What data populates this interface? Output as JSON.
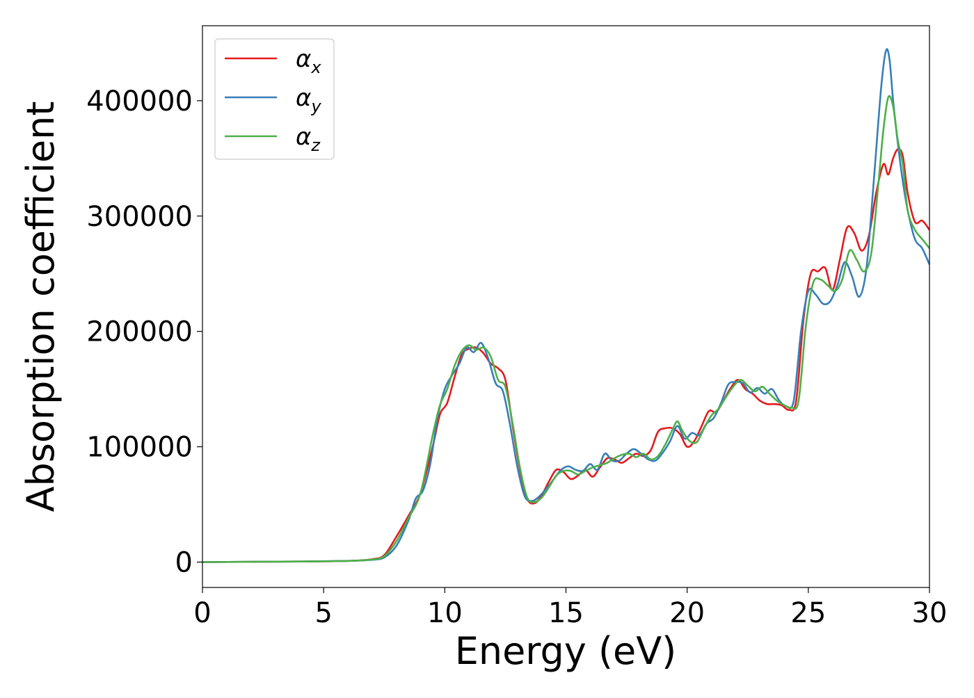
{
  "chart_data": {
    "type": "line",
    "title": "",
    "xlabel": "Energy (eV)",
    "ylabel": "Absorption coefficient",
    "xlim": [
      0,
      30
    ],
    "ylim": [
      -22000,
      465000
    ],
    "xticks": [
      "0",
      "5",
      "10",
      "15",
      "20",
      "25",
      "30"
    ],
    "yticks": [
      "0",
      "100000",
      "200000",
      "300000",
      "400000"
    ],
    "xtick_values": [
      0,
      5,
      10,
      15,
      20,
      25,
      30
    ],
    "ytick_values": [
      0,
      100000,
      200000,
      300000,
      400000
    ],
    "grid": false,
    "legend_position": "top-left",
    "series": [
      {
        "name": "αx",
        "symbol": "α",
        "subscript": "x",
        "color": "#e41a1c",
        "x": [
          0,
          4,
          6,
          7,
          7.5,
          8,
          8.5,
          9,
          9.5,
          9.8,
          10.1,
          10.4,
          10.7,
          11.0,
          11.3,
          11.6,
          11.9,
          12.2,
          12.5,
          12.8,
          13.1,
          13.4,
          13.7,
          14.0,
          14.3,
          14.6,
          14.9,
          15.2,
          15.5,
          15.8,
          16.1,
          16.4,
          16.7,
          17.0,
          17.3,
          17.6,
          17.9,
          18.2,
          18.5,
          18.8,
          19.1,
          19.4,
          19.7,
          20.0,
          20.3,
          20.6,
          20.9,
          21.2,
          21.5,
          21.8,
          22.1,
          22.4,
          22.7,
          23.0,
          23.3,
          23.6,
          23.9,
          24.2,
          24.5,
          24.8,
          25.1,
          25.4,
          25.7,
          26.0,
          26.3,
          26.6,
          26.9,
          27.2,
          27.5,
          27.8,
          28.1,
          28.3,
          28.5,
          28.7,
          28.9,
          29.1,
          29.4,
          29.7,
          30.0
        ],
        "values": [
          0,
          500,
          1000,
          2500,
          6000,
          22000,
          40000,
          60000,
          100000,
          128000,
          138000,
          160000,
          180000,
          185000,
          186000,
          181000,
          172000,
          168000,
          158000,
          118000,
          80000,
          55000,
          51000,
          58000,
          70000,
          80000,
          78000,
          72000,
          75000,
          80000,
          74000,
          82000,
          90000,
          89000,
          86000,
          90000,
          94000,
          92000,
          97000,
          113000,
          116000,
          116000,
          111000,
          100000,
          105000,
          118000,
          131000,
          130000,
          140000,
          151000,
          158000,
          150000,
          146000,
          140000,
          137000,
          137000,
          136000,
          132000,
          140000,
          210000,
          250000,
          252000,
          255000,
          236000,
          262000,
          290000,
          285000,
          270000,
          283000,
          320000,
          345000,
          336000,
          350000,
          358000,
          352000,
          320000,
          295000,
          296000,
          288000
        ]
      },
      {
        "name": "αy",
        "symbol": "α",
        "subscript": "y",
        "color": "#377eb8",
        "x": [
          0,
          4,
          6,
          7,
          7.5,
          8,
          8.5,
          8.8,
          9.1,
          9.4,
          9.7,
          10.0,
          10.3,
          10.6,
          10.9,
          11.2,
          11.5,
          11.8,
          12.1,
          12.4,
          12.7,
          13.0,
          13.3,
          13.6,
          13.9,
          14.2,
          14.5,
          14.8,
          15.1,
          15.4,
          15.7,
          16.0,
          16.3,
          16.6,
          16.9,
          17.2,
          17.5,
          17.8,
          18.1,
          18.4,
          18.7,
          19.0,
          19.3,
          19.6,
          19.9,
          20.2,
          20.5,
          20.8,
          21.1,
          21.4,
          21.7,
          22.0,
          22.3,
          22.6,
          22.9,
          23.2,
          23.5,
          23.8,
          24.1,
          24.4,
          24.7,
          25.0,
          25.3,
          25.6,
          25.9,
          26.2,
          26.5,
          26.8,
          27.1,
          27.4,
          27.7,
          28.0,
          28.2,
          28.35,
          28.5,
          28.7,
          28.9,
          29.1,
          29.4,
          29.7,
          30.0
        ],
        "values": [
          0,
          500,
          1000,
          2000,
          4000,
          14000,
          36000,
          55000,
          62000,
          85000,
          125000,
          150000,
          162000,
          172000,
          186000,
          182000,
          190000,
          176000,
          155000,
          148000,
          118000,
          82000,
          57000,
          53000,
          57000,
          64000,
          72000,
          80000,
          83000,
          80000,
          79000,
          85000,
          80000,
          94000,
          88000,
          88000,
          94000,
          98000,
          94000,
          89000,
          88000,
          95000,
          105000,
          118000,
          107000,
          112000,
          110000,
          120000,
          125000,
          138000,
          154000,
          156000,
          155000,
          147000,
          151000,
          146000,
          150000,
          140000,
          135000,
          140000,
          200000,
          235000,
          232000,
          224000,
          226000,
          240000,
          260000,
          248000,
          230000,
          255000,
          330000,
          410000,
          443000,
          436000,
          400000,
          362000,
          330000,
          305000,
          280000,
          272000,
          258000
        ]
      },
      {
        "name": "αz",
        "symbol": "α",
        "subscript": "z",
        "color": "#4daf4a",
        "x": [
          0,
          4,
          6,
          7,
          7.5,
          8,
          8.5,
          9,
          9.5,
          9.8,
          10.1,
          10.4,
          10.7,
          11.0,
          11.3,
          11.6,
          11.9,
          12.2,
          12.5,
          12.8,
          13.1,
          13.4,
          13.7,
          14.0,
          14.3,
          14.6,
          14.9,
          15.2,
          15.5,
          15.8,
          16.1,
          16.4,
          16.7,
          17.0,
          17.3,
          17.6,
          17.9,
          18.2,
          18.5,
          18.8,
          19.1,
          19.4,
          19.6,
          19.8,
          20.1,
          20.4,
          20.7,
          21.0,
          21.3,
          21.6,
          21.9,
          22.2,
          22.5,
          22.8,
          23.1,
          23.4,
          23.7,
          24.0,
          24.3,
          24.6,
          24.9,
          25.2,
          25.5,
          25.8,
          26.1,
          26.4,
          26.7,
          27.0,
          27.3,
          27.6,
          27.9,
          28.1,
          28.3,
          28.5,
          28.7,
          28.9,
          29.1,
          29.4,
          29.7,
          30.0
        ],
        "values": [
          0,
          500,
          1000,
          2200,
          5000,
          18000,
          38000,
          60000,
          110000,
          136000,
          150000,
          170000,
          183000,
          188000,
          184000,
          186000,
          178000,
          158000,
          152000,
          120000,
          82000,
          56000,
          52000,
          56000,
          65000,
          75000,
          79000,
          79000,
          76000,
          79000,
          82000,
          84000,
          86000,
          90000,
          93000,
          94000,
          91000,
          94000,
          89000,
          92000,
          102000,
          115000,
          122000,
          114000,
          105000,
          104000,
          116000,
          127000,
          133000,
          143000,
          152000,
          158000,
          153000,
          148000,
          152000,
          146000,
          140000,
          136000,
          134000,
          140000,
          205000,
          242000,
          245000,
          240000,
          235000,
          245000,
          270000,
          262000,
          252000,
          268000,
          330000,
          375000,
          403000,
          395000,
          365000,
          345000,
          305000,
          288000,
          280000,
          272000
        ]
      }
    ]
  }
}
